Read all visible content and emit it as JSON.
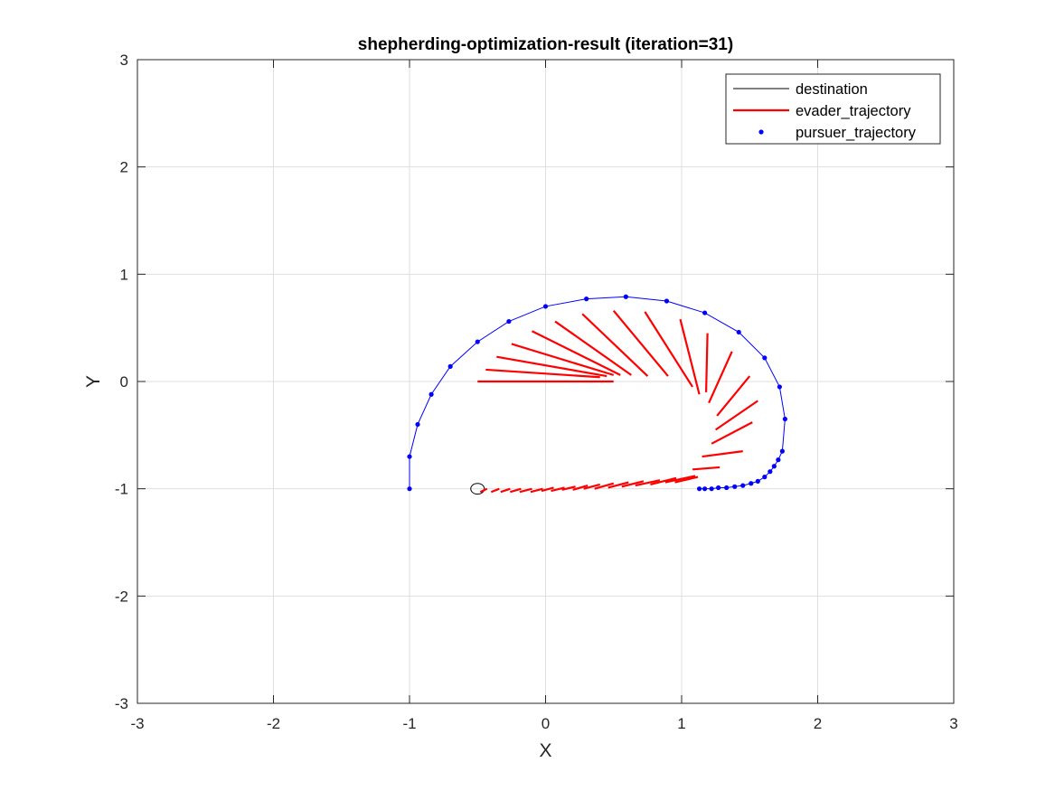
{
  "chart_data": {
    "type": "line",
    "title": "shepherding-optimization-result (iteration=31)",
    "xlabel": "X",
    "ylabel": "Y",
    "xlim": [
      -3,
      3
    ],
    "ylim": [
      -3,
      3
    ],
    "xticks": [
      -3,
      -2,
      -1,
      0,
      1,
      2,
      3
    ],
    "yticks": [
      -3,
      -2,
      -1,
      0,
      1,
      2,
      3
    ],
    "grid": true,
    "legend_position": "top-right",
    "legend": [
      {
        "label": "destination",
        "style": "line",
        "color": "#000000"
      },
      {
        "label": "evader_trajectory",
        "style": "thick-line",
        "color": "#ff0000"
      },
      {
        "label": "pursuer_trajectory",
        "style": "dot",
        "color": "#0000ff"
      }
    ],
    "series": [
      {
        "name": "destination",
        "kind": "circle",
        "color": "#000000",
        "center": [
          -0.5,
          -1.0
        ],
        "radius": 0.05
      },
      {
        "name": "evader_trajectory",
        "kind": "segments",
        "color": "#ff0000",
        "segments": [
          [
            [
              -0.48,
              -1.03
            ],
            [
              -0.43,
              -1.0
            ]
          ],
          [
            [
              -0.4,
              -1.03
            ],
            [
              -0.34,
              -1.0
            ]
          ],
          [
            [
              -0.33,
              -1.03
            ],
            [
              -0.26,
              -1.0
            ]
          ],
          [
            [
              -0.26,
              -1.03
            ],
            [
              -0.18,
              -1.0
            ]
          ],
          [
            [
              -0.19,
              -1.03
            ],
            [
              -0.1,
              -1.0
            ]
          ],
          [
            [
              -0.11,
              -1.03
            ],
            [
              -0.02,
              -1.0
            ]
          ],
          [
            [
              -0.03,
              -1.02
            ],
            [
              0.06,
              -0.99
            ]
          ],
          [
            [
              0.04,
              -1.02
            ],
            [
              0.14,
              -0.99
            ]
          ],
          [
            [
              0.12,
              -1.01
            ],
            [
              0.22,
              -0.98
            ]
          ],
          [
            [
              0.2,
              -1.01
            ],
            [
              0.31,
              -0.97
            ]
          ],
          [
            [
              0.28,
              -1.0
            ],
            [
              0.4,
              -0.96
            ]
          ],
          [
            [
              0.36,
              -1.0
            ],
            [
              0.5,
              -0.95
            ]
          ],
          [
            [
              0.46,
              -0.99
            ],
            [
              0.61,
              -0.94
            ]
          ],
          [
            [
              0.56,
              -0.98
            ],
            [
              0.72,
              -0.93
            ]
          ],
          [
            [
              0.66,
              -0.97
            ],
            [
              0.84,
              -0.92
            ]
          ],
          [
            [
              0.77,
              -0.96
            ],
            [
              0.96,
              -0.9
            ]
          ],
          [
            [
              0.88,
              -0.94
            ],
            [
              1.1,
              -0.88
            ]
          ],
          [
            [
              0.95,
              -0.94
            ],
            [
              1.12,
              -0.89
            ]
          ],
          [
            [
              1.08,
              -0.82
            ],
            [
              1.28,
              -0.8
            ]
          ],
          [
            [
              1.15,
              -0.7
            ],
            [
              1.45,
              -0.65
            ]
          ],
          [
            [
              1.22,
              -0.58
            ],
            [
              1.52,
              -0.38
            ]
          ],
          [
            [
              1.25,
              -0.45
            ],
            [
              1.56,
              -0.18
            ]
          ],
          [
            [
              1.26,
              -0.32
            ],
            [
              1.5,
              0.05
            ]
          ],
          [
            [
              1.2,
              -0.2
            ],
            [
              1.37,
              0.28
            ]
          ],
          [
            [
              1.18,
              -0.1
            ],
            [
              1.19,
              0.45
            ]
          ],
          [
            [
              1.13,
              -0.12
            ],
            [
              0.99,
              0.58
            ]
          ],
          [
            [
              1.08,
              -0.05
            ],
            [
              0.73,
              0.65
            ]
          ],
          [
            [
              0.9,
              0.05
            ],
            [
              0.5,
              0.66
            ]
          ],
          [
            [
              0.75,
              0.05
            ],
            [
              0.27,
              0.63
            ]
          ],
          [
            [
              0.63,
              0.06
            ],
            [
              0.07,
              0.56
            ]
          ],
          [
            [
              0.55,
              0.06
            ],
            [
              -0.1,
              0.47
            ]
          ],
          [
            [
              0.5,
              0.06
            ],
            [
              -0.25,
              0.35
            ]
          ],
          [
            [
              0.45,
              0.05
            ],
            [
              -0.36,
              0.23
            ]
          ],
          [
            [
              0.4,
              0.04
            ],
            [
              -0.44,
              0.11
            ]
          ],
          [
            [
              0.5,
              0.0
            ],
            [
              -0.5,
              0.0
            ]
          ]
        ]
      },
      {
        "name": "pursuer_trajectory",
        "kind": "line+dots",
        "color": "#0000ff",
        "x": [
          -1.0,
          -1.0,
          -0.94,
          -0.84,
          -0.7,
          -0.5,
          -0.27,
          0.0,
          0.3,
          0.59,
          0.89,
          1.17,
          1.42,
          1.61,
          1.72,
          1.76,
          1.74,
          1.71,
          1.68,
          1.65,
          1.61,
          1.56,
          1.51,
          1.45,
          1.39,
          1.33,
          1.27,
          1.22,
          1.17,
          1.13
        ],
        "y": [
          -1.0,
          -0.7,
          -0.4,
          -0.12,
          0.14,
          0.37,
          0.56,
          0.7,
          0.77,
          0.79,
          0.75,
          0.64,
          0.46,
          0.22,
          -0.05,
          -0.35,
          -0.65,
          -0.73,
          -0.79,
          -0.84,
          -0.89,
          -0.93,
          -0.95,
          -0.97,
          -0.98,
          -0.99,
          -0.99,
          -1.0,
          -1.0,
          -1.0
        ]
      }
    ]
  }
}
